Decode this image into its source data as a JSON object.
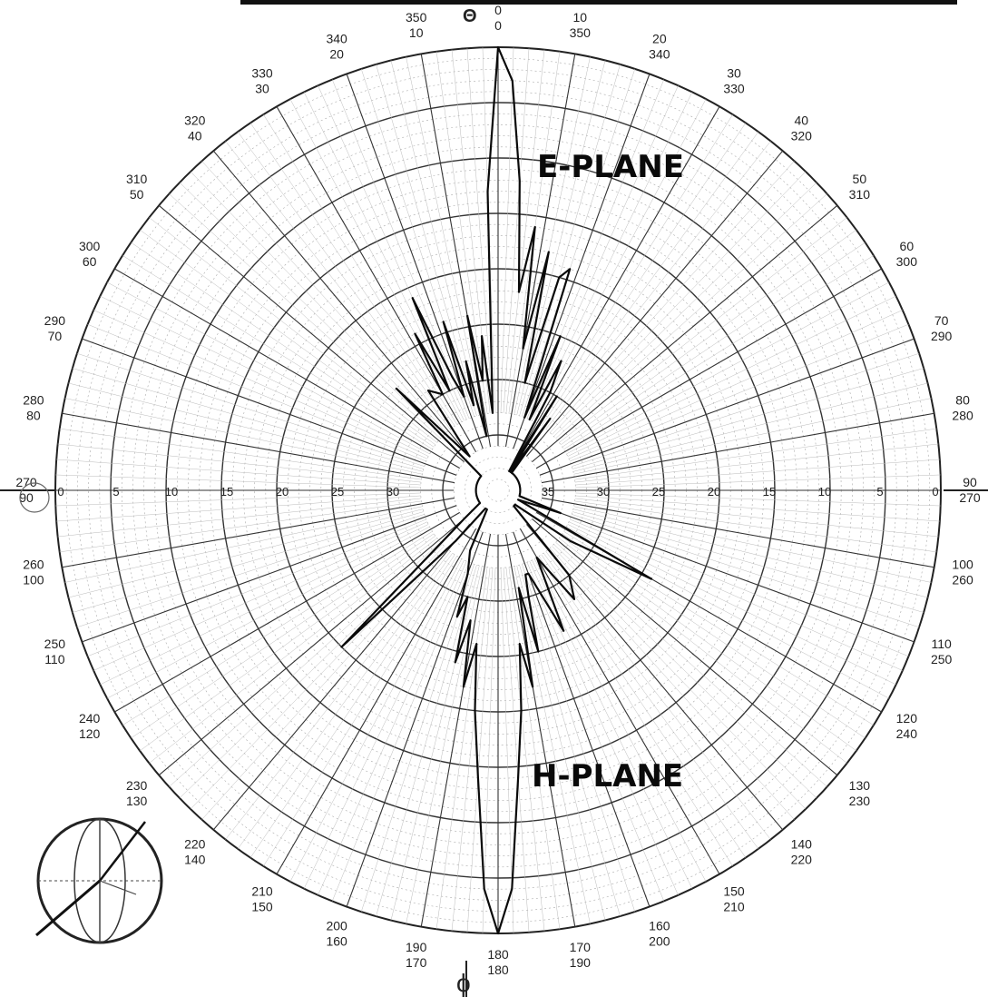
{
  "chart_data": {
    "type": "polar",
    "radial_axis": {
      "unit": "dB",
      "tick_labels": [
        "0",
        "5",
        "10",
        "15",
        "20",
        "25",
        "30",
        "35"
      ],
      "range_db": [
        0,
        -40
      ]
    },
    "angular_axis": {
      "outer_labels": [
        "0",
        "10",
        "20",
        "30",
        "40",
        "50",
        "60",
        "70",
        "80",
        "90",
        "100",
        "110",
        "120",
        "130",
        "140",
        "150",
        "160",
        "170",
        "180",
        "190",
        "200",
        "210",
        "220",
        "230",
        "240",
        "250",
        "260",
        "270",
        "280",
        "290",
        "300",
        "310",
        "320",
        "330",
        "340",
        "350"
      ],
      "inner_labels": [
        "0",
        "350",
        "340",
        "330",
        "320",
        "310",
        "300",
        "290",
        "280",
        "270",
        "260",
        "250",
        "240",
        "230",
        "220",
        "210",
        "200",
        "190",
        "180",
        "170",
        "160",
        "150",
        "140",
        "130",
        "120",
        "110",
        "100",
        "90",
        "80",
        "70",
        "60",
        "50",
        "40",
        "30",
        "20",
        "10"
      ],
      "special_labels": {
        "top_symbol": "Θ",
        "bottom_symbol": "ϕ"
      }
    },
    "grid": true,
    "annotations": [
      "E-PLANE",
      "H-PLANE"
    ],
    "series": [
      {
        "angles_deg": [
          0,
          2,
          4,
          6,
          8,
          10,
          12,
          14,
          16,
          18,
          20,
          22,
          24,
          26,
          28,
          30,
          32,
          34,
          36,
          38,
          40,
          45,
          50,
          55,
          60,
          65,
          70,
          75,
          80,
          85,
          90,
          95,
          100,
          105,
          110,
          115,
          120,
          125,
          130,
          135,
          140,
          145,
          150,
          155,
          160,
          162,
          164,
          166,
          168,
          170,
          172,
          174,
          176,
          178,
          180,
          182,
          184,
          186,
          188,
          190,
          192,
          194,
          196,
          198,
          200,
          205,
          210,
          215,
          220,
          225,
          230,
          235,
          240,
          245,
          250,
          255,
          260,
          265,
          270,
          275,
          280,
          285,
          290,
          295,
          300,
          305,
          310,
          315,
          320,
          325,
          330,
          332,
          334,
          336,
          338,
          340,
          342,
          344,
          346,
          348,
          350,
          352,
          354,
          356,
          358
        ],
        "gain_db": [
          0,
          -3,
          -12,
          -22,
          -16,
          -27,
          -18,
          -30,
          -20,
          -19,
          -33,
          -25,
          -33,
          -27,
          -30,
          -38,
          -30,
          -38,
          -32,
          -38,
          -38,
          -38,
          -38,
          -38,
          -38,
          -38,
          -38,
          -38,
          -38,
          -38,
          -38,
          -38,
          -38,
          -38,
          -34,
          -38,
          -24,
          -32,
          -38,
          -38,
          -30,
          -28,
          -33,
          -26,
          -32,
          -32,
          -30,
          -25,
          -31,
          -22,
          -26,
          -20,
          -14,
          -4,
          0,
          -4,
          -14,
          -20,
          -26,
          -22,
          -28,
          -24,
          -30,
          -28,
          -32,
          -34,
          -38,
          -38,
          -34,
          -20,
          -36,
          -38,
          -38,
          -38,
          -38,
          -38,
          -38,
          -38,
          -38,
          -38,
          -38,
          -38,
          -38,
          -38,
          -38,
          -38,
          -38,
          -27,
          -36,
          -29,
          -30,
          -24,
          -30,
          -21,
          -29,
          -31,
          -24,
          -32,
          -28,
          -35,
          -24,
          -30,
          -26,
          -33,
          -13
        ]
      }
    ]
  },
  "labels": {
    "e_plane": "E-PLANE",
    "h_plane": "H-PLANE",
    "theta_symbol": "Θ",
    "phi_symbol": "ϕ"
  }
}
